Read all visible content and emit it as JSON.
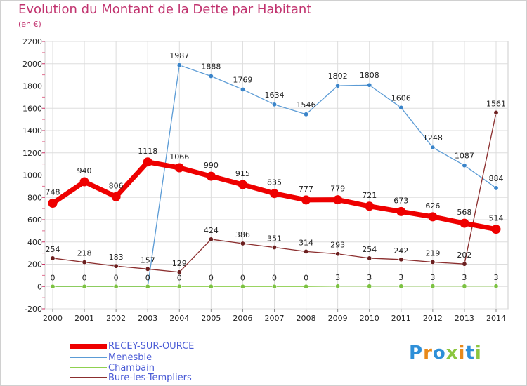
{
  "title": "Evolution du Montant de la Dette par Habitant",
  "subtitle": "(en €)",
  "logo": {
    "text": "Proxiti",
    "colors": [
      "#2e8fd8",
      "#e8891a",
      "#2e8fd8",
      "#8cc63f",
      "#e8891a",
      "#2e8fd8",
      "#8cc63f"
    ]
  },
  "chart_data": {
    "type": "line",
    "title": "Evolution du Montant de la Dette par Habitant",
    "subtitle": "(en €)",
    "x": [
      2000,
      2001,
      2002,
      2003,
      2004,
      2005,
      2006,
      2007,
      2008,
      2009,
      2010,
      2011,
      2012,
      2013,
      2014
    ],
    "ylim": [
      -200,
      2200
    ],
    "yticks": [
      -200,
      0,
      200,
      400,
      600,
      800,
      1000,
      1200,
      1400,
      1600,
      1800,
      2000,
      2200
    ],
    "grid": true,
    "legend_position": "bottom-left",
    "series": [
      {
        "name": "RECEY-SUR-OURCE",
        "color": "#ee0000",
        "marker_color": "#ee0000",
        "values": [
          748,
          940,
          806,
          1118,
          1066,
          990,
          915,
          835,
          777,
          779,
          721,
          673,
          626,
          568,
          514
        ],
        "labels_shown": [
          true,
          true,
          true,
          true,
          true,
          true,
          true,
          true,
          true,
          true,
          true,
          true,
          true,
          true,
          true
        ],
        "emphasis": "thick"
      },
      {
        "name": "Menesble",
        "color": "#5b9bd5",
        "marker_color": "#3a84c9",
        "values": [
          0,
          0,
          0,
          0,
          1987,
          1888,
          1769,
          1634,
          1546,
          1802,
          1808,
          1606,
          1248,
          1087,
          884
        ],
        "labels_shown": [
          false,
          false,
          false,
          false,
          true,
          true,
          true,
          true,
          true,
          true,
          true,
          true,
          true,
          true,
          true
        ],
        "emphasis": "thin"
      },
      {
        "name": "Chambain",
        "color": "#8fd14f",
        "marker_color": "#7cc242",
        "values": [
          0,
          0,
          0,
          0,
          0,
          0,
          0,
          0,
          0,
          3,
          3,
          3,
          3,
          3,
          3
        ],
        "labels_shown": [
          true,
          true,
          true,
          true,
          true,
          true,
          true,
          true,
          true,
          true,
          true,
          true,
          true,
          true,
          true
        ],
        "emphasis": "thin"
      },
      {
        "name": "Bure-les-Templiers",
        "color": "#8b2e2e",
        "marker_color": "#6b1f1f",
        "values": [
          254,
          218,
          183,
          157,
          129,
          424,
          386,
          351,
          314,
          293,
          254,
          242,
          219,
          202,
          1561
        ],
        "labels_shown": [
          true,
          true,
          true,
          true,
          true,
          true,
          true,
          true,
          true,
          true,
          true,
          true,
          true,
          true,
          true
        ],
        "emphasis": "thin"
      }
    ]
  }
}
